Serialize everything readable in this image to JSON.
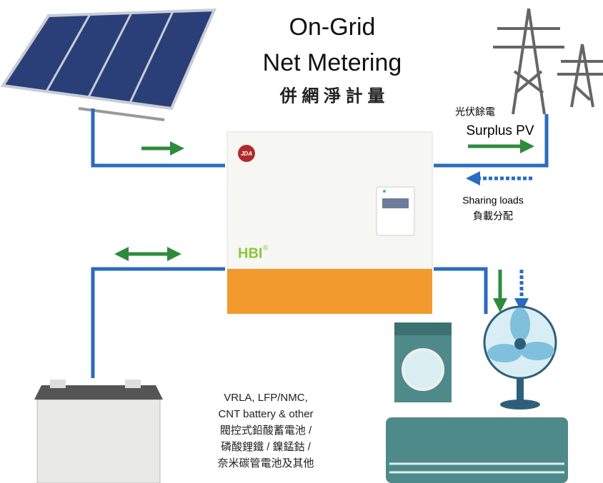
{
  "title": {
    "line1": "On-Grid",
    "line2": "Net Metering",
    "line3": "併 網 淨 計 量"
  },
  "grid": {
    "label_zh": "光伏餘電",
    "label_en": "Surplus PV",
    "loads_en": "Sharing loads",
    "loads_zh": "負載分配"
  },
  "inverter": {
    "brand": "JDA",
    "model": "HBI",
    "mark": "®"
  },
  "battery": {
    "lines": [
      "VRLA, LFP/NMC,",
      "CNT battery & other",
      "閥控式鉛酸蓄電池 /",
      "磷酸鋰鐵 / 鎳錳鈷 /",
      "奈米碳管電池及其他"
    ]
  }
}
